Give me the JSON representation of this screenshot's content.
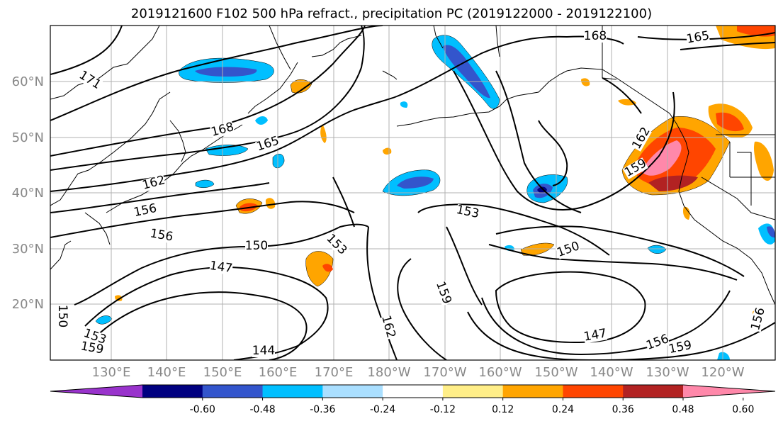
{
  "title": "2019121600 F102 500 hPa refract., precipitation PC (2019122000 - 2019122100)",
  "lat_labels": [
    "60°N",
    "50°N",
    "40°N",
    "30°N",
    "20°N"
  ],
  "lon_labels": [
    "130°E",
    "140°E",
    "150°E",
    "160°E",
    "170°E",
    "180°W",
    "170°W",
    "160°W",
    "150°W",
    "140°W",
    "130°W",
    "120°W"
  ],
  "contour_labels": [
    "171",
    "168",
    "165",
    "162",
    "156",
    "156",
    "150",
    "147",
    "144",
    "153",
    "153",
    "159",
    "162",
    "150",
    "147",
    "156",
    "159",
    "165",
    "168",
    "159",
    "162",
    "156",
    "150",
    "153",
    "159"
  ],
  "colorbar": {
    "colors": [
      "#9933cc",
      "#000080",
      "#3355cc",
      "#00bfff",
      "#aadfff",
      "#ffffff",
      "#ffee88",
      "#ffa500",
      "#ff4500",
      "#b22222",
      "#ff88aa"
    ],
    "tick_labels": [
      "-0.60",
      "-0.48",
      "-0.36",
      "-0.24",
      "-0.12",
      "0.12",
      "0.24",
      "0.36",
      "0.48",
      "0.60"
    ]
  }
}
